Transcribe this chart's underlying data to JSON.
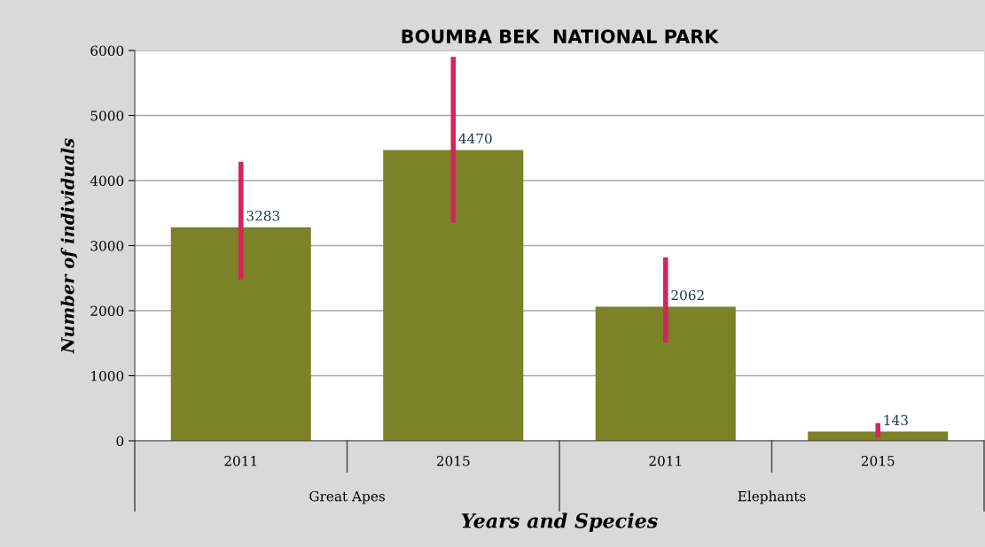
{
  "chart_data": {
    "type": "bar",
    "title": "BOUMBA BEK  NATIONAL PARK",
    "xlabel": "Years and Species",
    "ylabel": "Number of individuals",
    "categories": [
      "2011",
      "2015",
      "2011",
      "2015"
    ],
    "values": [
      3283,
      4470,
      2062,
      143
    ],
    "color": "#7b8228",
    "errors": [
      [
        2480,
        4290
      ],
      [
        3350,
        5900
      ],
      [
        1510,
        2820
      ],
      [
        50,
        270
      ]
    ],
    "data_labels": true,
    "annotations": [
      "Great Apes",
      "Elephants"
    ],
    "ylim": [
      0,
      6000
    ],
    "yticks": [
      0,
      1000,
      2000,
      3000,
      4000,
      5000,
      6000
    ],
    "grid": "y",
    "legend": false
  }
}
